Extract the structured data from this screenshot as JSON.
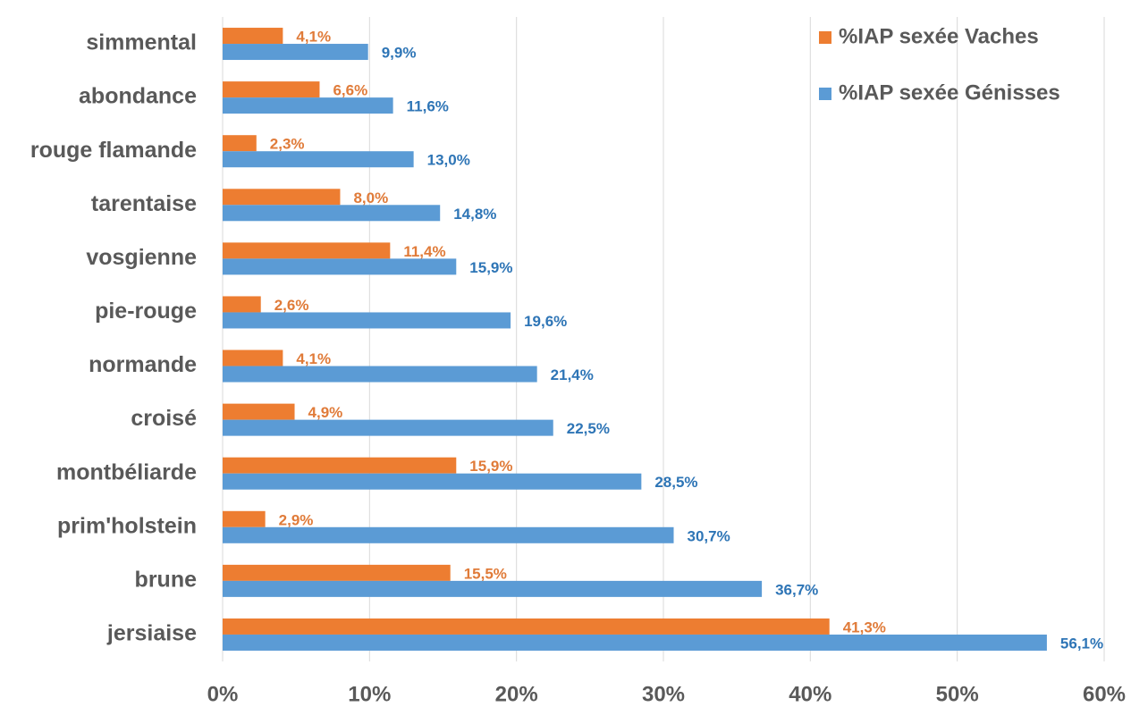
{
  "chart_data": {
    "type": "bar",
    "orientation": "horizontal",
    "categories": [
      "simmental",
      "abondance",
      "rouge flamande",
      "tarentaise",
      "vosgienne",
      "pie-rouge",
      "normande",
      "croisé",
      "montbéliarde",
      "prim'holstein",
      "brune",
      "jersiaise"
    ],
    "series": [
      {
        "name": "%IAP sexée Vaches",
        "color": "#ed7d31",
        "label_color": "#e07b39",
        "values": [
          4.1,
          6.6,
          2.3,
          8.0,
          11.4,
          2.6,
          4.1,
          4.9,
          15.9,
          2.9,
          15.5,
          41.3
        ],
        "value_labels": [
          "4,1%",
          "6,6%",
          "2,3%",
          "8,0%",
          "11,4%",
          "2,6%",
          "4,1%",
          "4,9%",
          "15,9%",
          "2,9%",
          "15,5%",
          "41,3%"
        ]
      },
      {
        "name": "%IAP sexée Génisses",
        "color": "#5b9bd5",
        "label_color": "#2e75b6",
        "values": [
          9.9,
          11.6,
          13.0,
          14.8,
          15.9,
          19.6,
          21.4,
          22.5,
          28.5,
          30.7,
          36.7,
          56.1
        ],
        "value_labels": [
          "9,9%",
          "11,6%",
          "13,0%",
          "14,8%",
          "15,9%",
          "19,6%",
          "21,4%",
          "22,5%",
          "28,5%",
          "30,7%",
          "36,7%",
          "56,1%"
        ]
      }
    ],
    "xlim": [
      0,
      60
    ],
    "xticks": [
      {
        "value": 0,
        "label": "0%"
      },
      {
        "value": 10,
        "label": "10%"
      },
      {
        "value": 20,
        "label": "20%"
      },
      {
        "value": 30,
        "label": "30%"
      },
      {
        "value": 40,
        "label": "40%"
      },
      {
        "value": 50,
        "label": "50%"
      },
      {
        "value": 60,
        "label": "60%"
      }
    ],
    "grid": true,
    "legend": "top-right"
  }
}
